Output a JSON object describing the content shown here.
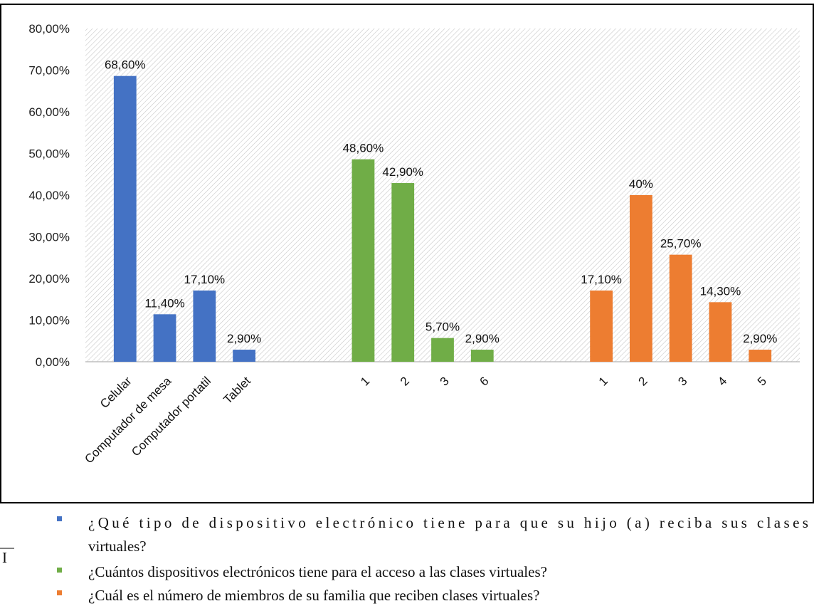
{
  "chart_data": {
    "type": "bar",
    "ylim": [
      0,
      0.8
    ],
    "y_ticks": [
      "0,00%",
      "10,00%",
      "20,00%",
      "30,00%",
      "40,00%",
      "50,00%",
      "60,00%",
      "70,00%",
      "80,00%"
    ],
    "y_tick_values": [
      0,
      0.1,
      0.2,
      0.3,
      0.4,
      0.5,
      0.6,
      0.7,
      0.8
    ],
    "grid": false,
    "legend_placement": "bottom",
    "series": [
      {
        "name": "¿Qué tipo de dispositivo electrónico tiene para que su hijo (a) reciba sus clases virtuales?",
        "color": "#4472C4",
        "categories": [
          "Celular",
          "Computador de mesa",
          "Computador portatil",
          "Tablet"
        ],
        "values": [
          0.686,
          0.114,
          0.171,
          0.029
        ],
        "labels": [
          "68,60%",
          "11,40%",
          "17,10%",
          "2,90%"
        ]
      },
      {
        "name": "¿Cuántos dispositivos electrónicos tiene para el acceso a las clases virtuales?",
        "color": "#70AD47",
        "categories": [
          "1",
          "2",
          "3",
          "6"
        ],
        "values": [
          0.486,
          0.429,
          0.057,
          0.029
        ],
        "labels": [
          "48,60%",
          "42,90%",
          "5,70%",
          "2,90%"
        ]
      },
      {
        "name": "¿Cuál es el número de miembros de su familia que reciben clases virtuales?",
        "color": "#ED7D31",
        "categories": [
          "1",
          "2",
          "3",
          "4",
          "5"
        ],
        "values": [
          0.171,
          0.4,
          0.257,
          0.143,
          0.029
        ],
        "labels": [
          "17,10%",
          "40%",
          "25,70%",
          "14,30%",
          "2,90%"
        ]
      }
    ],
    "legend": {
      "line1": "¿Qué tipo de dispositivo electrónico tiene para que su hijo (a) reciba sus clases",
      "line1_cont": "virtuales?",
      "line2": "¿Cuántos dispositivos electrónicos tiene para el acceso a las clases virtuales?",
      "line3": "¿Cuál es el número de miembros de su familia que reciben clases virtuales?"
    },
    "stray_char": "I"
  }
}
